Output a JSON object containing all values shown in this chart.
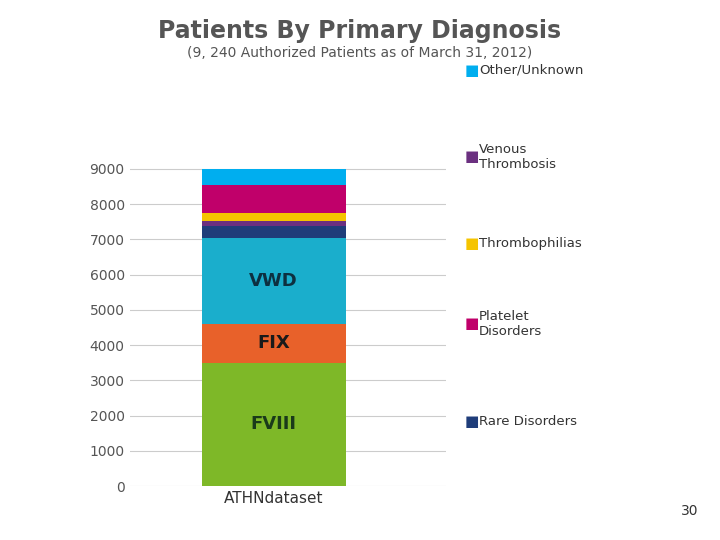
{
  "title": "Patients By Primary Diagnosis",
  "subtitle": "(9, 240 Authorized Patients as of March 31, 2012)",
  "xlabel": "ATHNdataset",
  "ylabel": "",
  "ylim": [
    0,
    9500
  ],
  "yticks": [
    0,
    1000,
    2000,
    3000,
    4000,
    5000,
    6000,
    7000,
    8000,
    9000
  ],
  "segments": [
    {
      "label": "FVIII",
      "value": 3500,
      "color": "#7EB828",
      "text": "FVIII",
      "text_color": "#1a3a1a"
    },
    {
      "label": "FIX",
      "value": 1100,
      "color": "#E8612A",
      "text": "FIX",
      "text_color": "#1a1a1a"
    },
    {
      "label": "VWD",
      "value": 2450,
      "color": "#1AAECC",
      "text": "VWD",
      "text_color": "#0d3040"
    },
    {
      "label": "Rare Disorders",
      "value": 320,
      "color": "#1F3D7A",
      "text": "",
      "text_color": "#ffffff"
    },
    {
      "label": "Venous Thrombosis",
      "value": 160,
      "color": "#6B3080",
      "text": "",
      "text_color": "#ffffff"
    },
    {
      "label": "Thrombophilias",
      "value": 220,
      "color": "#F5C400",
      "text": "",
      "text_color": "#ffffff"
    },
    {
      "label": "Platelet Disorders",
      "value": 800,
      "color": "#C0006A",
      "text": "",
      "text_color": "#ffffff"
    },
    {
      "label": "Other/Unknown",
      "value": 450,
      "color": "#00AEEF",
      "text": "",
      "text_color": "#ffffff"
    }
  ],
  "legend_entries": [
    {
      "label": "Other/Unknown",
      "color": "#00AEEF"
    },
    {
      "label": "Venous\nThrombosis",
      "color": "#6B3080"
    },
    {
      "label": "Thrombophilias",
      "color": "#F5C400"
    },
    {
      "label": "Platelet\nDisorders",
      "color": "#C0006A"
    },
    {
      "label": "Rare Disorders",
      "color": "#1F3D7A"
    }
  ],
  "background_color": "#ffffff",
  "bar_width": 0.5,
  "page_number": "30"
}
